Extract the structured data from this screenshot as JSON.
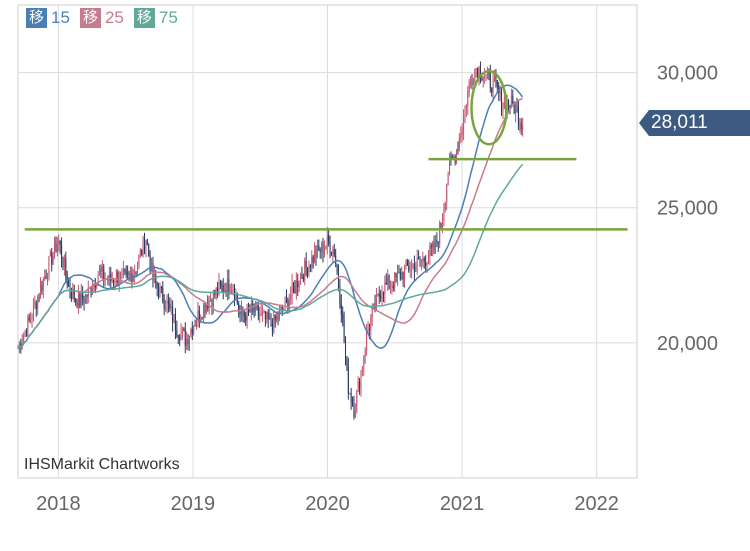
{
  "legend": [
    {
      "badge": "移",
      "label": "15",
      "color": "#4a7fb5"
    },
    {
      "badge": "移",
      "label": "25",
      "color": "#c77b8e"
    },
    {
      "badge": "移",
      "label": "75",
      "color": "#5fa89a"
    }
  ],
  "credit": "IHSMarkit Chartworks",
  "current_price": {
    "label": "28,011",
    "value": 28011,
    "color": "#3d5a80"
  },
  "chart_data": {
    "type": "candlestick",
    "x_ticks": [
      "2018",
      "2019",
      "2020",
      "2021",
      "2022"
    ],
    "x_tick_years": [
      2018,
      2019,
      2020,
      2021,
      2022
    ],
    "xlim": [
      2017.7,
      2022.3
    ],
    "y_ticks": [
      {
        "value": 20000,
        "label": "20,000"
      },
      {
        "value": 25000,
        "label": "25,000"
      },
      {
        "value": 30000,
        "label": "30,000"
      }
    ],
    "ylim": [
      15000,
      32500
    ],
    "grid": true,
    "colors": {
      "up": "#c4566f",
      "down": "#27365e",
      "ma15": "#4a7fb5",
      "ma25": "#c77b8e",
      "ma75": "#5fa89a",
      "annotation": "#7aa43f"
    },
    "price_series": {
      "x": [
        2017.7,
        2017.8,
        2017.9,
        2018.0,
        2018.08,
        2018.15,
        2018.22,
        2018.3,
        2018.38,
        2018.45,
        2018.5,
        2018.58,
        2018.65,
        2018.7,
        2018.75,
        2018.8,
        2018.88,
        2018.95,
        2019.0,
        2019.1,
        2019.2,
        2019.3,
        2019.35,
        2019.45,
        2019.55,
        2019.6,
        2019.7,
        2019.8,
        2019.9,
        2020.0,
        2020.05,
        2020.1,
        2020.15,
        2020.2,
        2020.25,
        2020.3,
        2020.4,
        2020.5,
        2020.6,
        2020.7,
        2020.8,
        2020.85,
        2020.9,
        2020.95,
        2021.0,
        2021.05,
        2021.1,
        2021.15,
        2021.2,
        2021.25,
        2021.3,
        2021.35,
        2021.4,
        2021.45
      ],
      "close": [
        19800,
        21000,
        22500,
        23800,
        22000,
        21500,
        21800,
        22600,
        22300,
        22500,
        22300,
        22800,
        23900,
        22400,
        21900,
        21500,
        20600,
        20100,
        20700,
        21500,
        22000,
        22200,
        21000,
        21200,
        20800,
        20700,
        21500,
        22500,
        23200,
        23700,
        23400,
        21500,
        18500,
        17500,
        19000,
        20500,
        22000,
        22300,
        22800,
        23000,
        23500,
        24500,
        26500,
        27000,
        28000,
        29500,
        30200,
        30000,
        29700,
        29500,
        28800,
        28900,
        28700,
        28011
      ]
    },
    "moving_averages": [
      {
        "name": "15",
        "window": 5
      },
      {
        "name": "25",
        "window": 8
      },
      {
        "name": "75",
        "window": 15
      }
    ],
    "annotations": [
      {
        "type": "hline",
        "y": 24200,
        "x_from": 2017.75,
        "x_to": 2022.23
      },
      {
        "type": "hline",
        "y": 26800,
        "x_from": 2020.75,
        "x_to": 2021.85
      },
      {
        "type": "ellipse",
        "x": 2021.2,
        "y": 28700,
        "rx": 0.13,
        "ry": 1350
      }
    ]
  }
}
